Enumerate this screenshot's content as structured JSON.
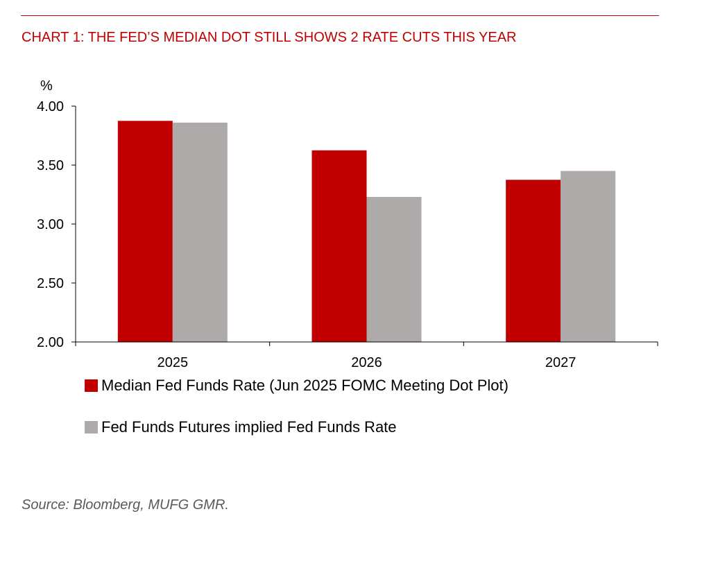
{
  "chart_data": {
    "type": "bar",
    "title": "CHART 1: THE FED’S MEDIAN DOT STILL SHOWS 2 RATE CUTS THIS YEAR",
    "ylabel": "%",
    "xlabel": "",
    "categories": [
      "2025",
      "2026",
      "2027"
    ],
    "series": [
      {
        "name": "Median Fed Funds Rate (Jun 2025 FOMC Meeting Dot Plot)",
        "values": [
          3.875,
          3.625,
          3.375
        ],
        "color": "#c00000"
      },
      {
        "name": "Fed Funds Futures implied Fed Funds Rate",
        "values": [
          3.86,
          3.23,
          3.45
        ],
        "color": "#aeaaaa"
      }
    ],
    "ylim": [
      2.0,
      4.0
    ],
    "yticks": [
      "2.00",
      "2.50",
      "3.00",
      "3.50",
      "4.00"
    ],
    "grid": false,
    "legend": "bottom",
    "source": "Source: Bloomberg, MUFG GMR."
  },
  "colors": {
    "accent": "#c00000",
    "grey": "#aeaaaa"
  }
}
